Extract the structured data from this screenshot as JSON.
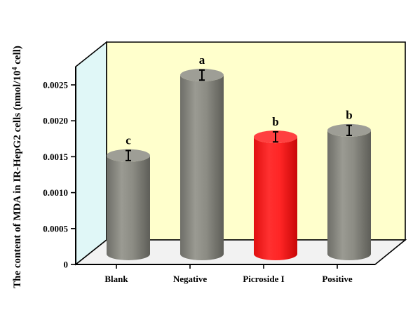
{
  "chart_data": {
    "type": "bar",
    "style": "3d-cylinder",
    "ylabel_main": "The content of MDA in IR-HepG2 cells (nmol/10",
    "ylabel_sup": "4",
    "ylabel_end": " cell)",
    "xlabel": "",
    "ylim": [
      0,
      0.0028
    ],
    "yticks": [
      "0",
      "0.0005",
      "0.0010",
      "0.0015",
      "0.0020",
      "0.0025"
    ],
    "ytick_values": [
      0,
      0.0005,
      0.001,
      0.0015,
      0.002,
      0.0025
    ],
    "categories": [
      "Blank",
      "Negative",
      "Picroside I",
      "Positive"
    ],
    "values": [
      0.00137,
      0.00249,
      0.00163,
      0.00172
    ],
    "errors": [
      7e-05,
      7e-05,
      7e-05,
      7e-05
    ],
    "significance": [
      "c",
      "a",
      "b",
      "b"
    ],
    "colors": {
      "Blank": "#8a8a82",
      "Negative": "#8a8a82",
      "Picroside I": "#ff2020",
      "Positive": "#8a8a82",
      "back_wall": "#ffffcc",
      "side_wall": "#e0f7f7",
      "floor": "#f2f2f2"
    },
    "grid": false
  }
}
